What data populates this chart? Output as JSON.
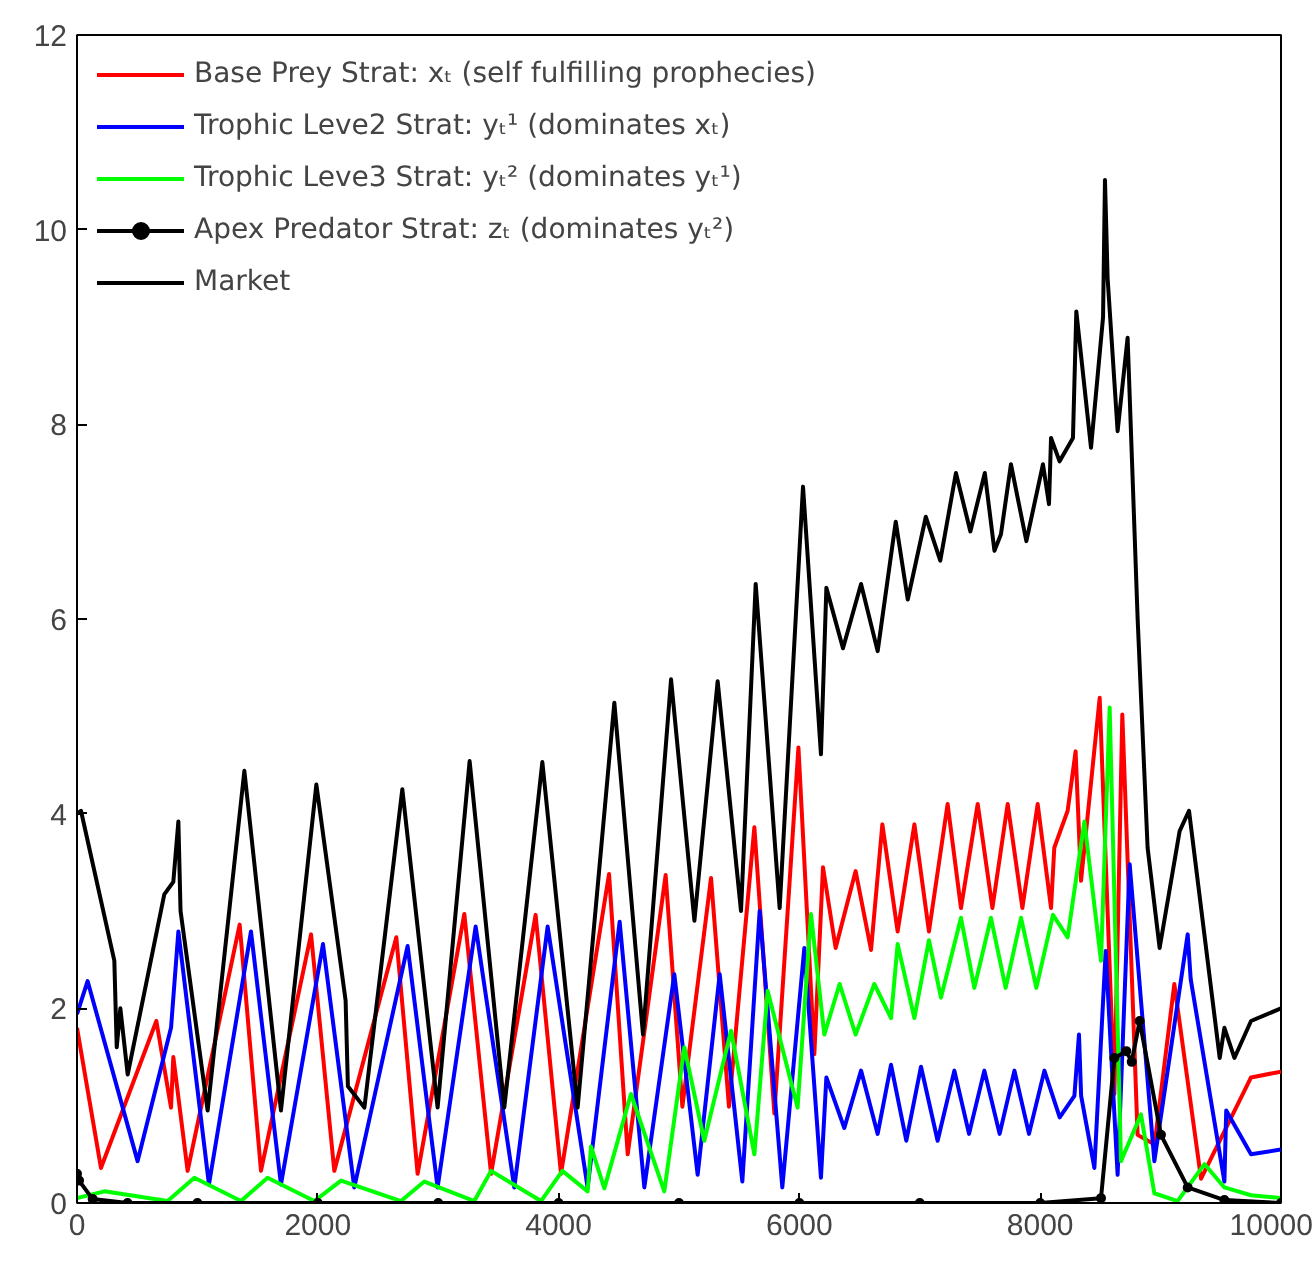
{
  "chart_data": {
    "type": "line",
    "xlim": [
      0,
      10000
    ],
    "ylim": [
      0,
      12
    ],
    "xticks": [
      0,
      2000,
      4000,
      6000,
      8000,
      10000
    ],
    "yticks": [
      0,
      2,
      4,
      6,
      8,
      10,
      12
    ],
    "grid": false,
    "legend": "top left",
    "line_style": "solid",
    "series": [
      {
        "name": "Base Prey Strat: xₜ (self fulfilling prophecies)",
        "color": "#ff0000",
        "x": [
          0,
          199,
          659,
          781,
          800,
          919,
          1351,
          1528,
          1944,
          2137,
          2652,
          2829,
          3217,
          3439,
          3809,
          4020,
          4419,
          4574,
          4889,
          5028,
          5266,
          5415,
          5626,
          5792,
          5992,
          6124,
          6196,
          6301,
          6467,
          6595,
          6689,
          6816,
          6955,
          7076,
          7231,
          7342,
          7481,
          7603,
          7730,
          7852,
          7979,
          8090,
          8117,
          8228,
          8294,
          8339,
          8494,
          8616,
          8682,
          8809,
          8950,
          9114,
          9336,
          9751,
          10000
        ],
        "values": [
          1.8,
          0.36,
          1.87,
          0.98,
          1.5,
          0.33,
          2.86,
          0.33,
          2.76,
          0.33,
          2.73,
          0.3,
          2.97,
          0.3,
          2.96,
          0.3,
          3.38,
          0.5,
          3.37,
          0.99,
          3.34,
          0.99,
          3.86,
          0.92,
          4.68,
          1.53,
          3.45,
          2.62,
          3.41,
          2.6,
          3.89,
          2.79,
          3.89,
          2.79,
          4.1,
          3.03,
          4.1,
          3.03,
          4.1,
          3.03,
          4.1,
          3.03,
          3.65,
          4.03,
          4.64,
          3.31,
          5.19,
          1.12,
          5.02,
          0.7,
          0.6,
          2.25,
          0.25,
          1.29,
          1.35
        ]
      },
      {
        "name": "Trophic Leve2 Strat: yₜ¹ (dominates xₜ)",
        "color": "#0000ff",
        "x": [
          0,
          88,
          503,
          781,
          842,
          1096,
          1445,
          1694,
          2043,
          2303,
          2746,
          2995,
          3311,
          3632,
          3909,
          4241,
          4507,
          4712,
          4961,
          5155,
          5338,
          5526,
          5670,
          5858,
          6041,
          6179,
          6224,
          6373,
          6512,
          6650,
          6761,
          6888,
          7010,
          7148,
          7287,
          7409,
          7536,
          7663,
          7786,
          7907,
          8035,
          8162,
          8284,
          8322,
          8340,
          8450,
          8544,
          8643,
          8743,
          8948,
          9225,
          9250,
          9530,
          9545,
          9751,
          10000
        ],
        "values": [
          1.94,
          2.28,
          0.43,
          1.8,
          2.79,
          0.19,
          2.79,
          0.19,
          2.66,
          0.16,
          2.64,
          0.16,
          2.84,
          0.16,
          2.84,
          0.16,
          2.89,
          0.16,
          2.35,
          0.29,
          2.35,
          0.22,
          3.0,
          0.16,
          2.62,
          0.26,
          1.29,
          0.77,
          1.36,
          0.71,
          1.42,
          0.64,
          1.4,
          0.64,
          1.36,
          0.71,
          1.36,
          0.71,
          1.36,
          0.71,
          1.36,
          0.88,
          1.1,
          1.73,
          1.1,
          0.36,
          2.59,
          0.29,
          3.48,
          0.43,
          2.76,
          2.3,
          0.22,
          0.95,
          0.5,
          0.55
        ]
      },
      {
        "name": "Trophic Leve3 Strat: yₜ² (dominates yₜ¹)",
        "color": "#00ff00",
        "x": [
          0,
          228,
          753,
          975,
          1362,
          1583,
          1971,
          2193,
          2691,
          2885,
          3300,
          3439,
          3854,
          4031,
          4241,
          4269,
          4380,
          4601,
          4878,
          5044,
          5210,
          5432,
          5626,
          5736,
          5985,
          6096,
          6207,
          6334,
          6467,
          6622,
          6761,
          6816,
          6955,
          7076,
          7176,
          7342,
          7453,
          7591,
          7713,
          7841,
          7968,
          8106,
          8228,
          8367,
          8505,
          8577,
          8671,
          8837,
          8948,
          9141,
          9364,
          9530,
          9751,
          10000
        ],
        "values": [
          0.05,
          0.12,
          0.02,
          0.26,
          0.02,
          0.26,
          0.02,
          0.23,
          0.02,
          0.22,
          0.02,
          0.33,
          0.02,
          0.33,
          0.12,
          0.58,
          0.15,
          1.12,
          0.12,
          1.6,
          0.64,
          1.77,
          0.5,
          2.18,
          0.98,
          2.97,
          1.73,
          2.25,
          1.73,
          2.25,
          1.9,
          2.66,
          1.9,
          2.7,
          2.11,
          2.93,
          2.21,
          2.93,
          2.21,
          2.93,
          2.21,
          2.96,
          2.73,
          3.92,
          2.49,
          5.09,
          0.43,
          0.91,
          0.1,
          0.02,
          0.4,
          0.16,
          0.08,
          0.05
        ]
      },
      {
        "name": "Apex Predator Strat: zₜ (dominates yₜ²)",
        "color": "#000000",
        "marker": "circle",
        "x": [
          0,
          17,
          130,
          420,
          1000,
          2000,
          3000,
          4000,
          5000,
          6000,
          7000,
          8000,
          8505,
          8616,
          8715,
          8760,
          8826,
          9003,
          9225,
          9530,
          10000
        ],
        "values": [
          0.3,
          0.23,
          0.04,
          0.0,
          0.0,
          0.0,
          0.0,
          0.0,
          0.0,
          0.0,
          0.0,
          0.0,
          0.05,
          1.49,
          1.56,
          1.45,
          1.87,
          0.7,
          0.16,
          0.03,
          0.0
        ]
      },
      {
        "name": "Market",
        "color": "#000000",
        "x": [
          0,
          33,
          310,
          330,
          360,
          421,
          725,
          800,
          842,
          860,
          1085,
          1390,
          1694,
          1988,
          2231,
          2250,
          2387,
          2702,
          2995,
          3261,
          3549,
          3865,
          4158,
          4463,
          4701,
          4934,
          5128,
          5321,
          5515,
          5637,
          5836,
          6030,
          6179,
          6224,
          6362,
          6512,
          6650,
          6800,
          6900,
          7050,
          7170,
          7300,
          7420,
          7540,
          7620,
          7674,
          7757,
          7885,
          8023,
          8073,
          8090,
          8161,
          8272,
          8300,
          8422,
          8522,
          8538,
          8560,
          8643,
          8726,
          8809,
          8892,
          8992,
          9158,
          9236,
          9491,
          9530,
          9613,
          9751,
          10000
        ],
        "values": [
          4.0,
          4.03,
          2.49,
          1.6,
          2.0,
          1.32,
          3.17,
          3.3,
          3.92,
          3.0,
          0.95,
          4.44,
          0.95,
          4.3,
          2.08,
          1.2,
          0.98,
          4.25,
          0.98,
          4.54,
          0.98,
          4.53,
          0.98,
          5.14,
          1.73,
          5.38,
          2.9,
          5.36,
          3.0,
          6.36,
          3.03,
          7.36,
          4.61,
          6.32,
          5.7,
          6.36,
          5.67,
          7.0,
          6.2,
          7.05,
          6.6,
          7.5,
          6.9,
          7.5,
          6.7,
          6.87,
          7.59,
          6.8,
          7.59,
          7.18,
          7.86,
          7.62,
          7.86,
          9.16,
          7.76,
          9.1,
          10.51,
          9.5,
          7.93,
          8.89,
          6.01,
          3.65,
          2.62,
          3.82,
          4.03,
          1.49,
          1.8,
          1.49,
          1.87,
          2.0
        ]
      }
    ]
  }
}
